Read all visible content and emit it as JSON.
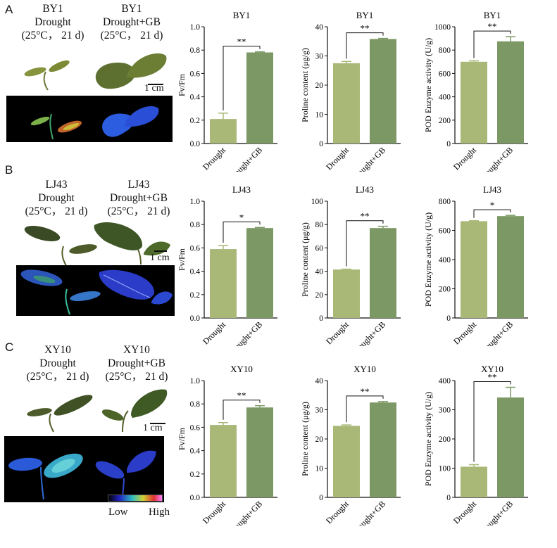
{
  "panels": [
    {
      "letter": "A",
      "label_left": [
        "BY1",
        "Drought",
        "(25°C， 21 d)"
      ],
      "label_right": [
        "BY1",
        "Drought+GB",
        "(25°C， 21 d)"
      ],
      "scale_bar": "1 cm"
    },
    {
      "letter": "B",
      "label_left": [
        "LJ43",
        "Drought",
        "(25°C， 21 d)"
      ],
      "label_right": [
        "LJ43",
        "Drought+GB",
        "(25°C， 21 d)"
      ],
      "scale_bar": "1 cm"
    },
    {
      "letter": "C",
      "label_left": [
        "XY10",
        "Drought",
        "(25°C， 21 d)"
      ],
      "label_right": [
        "XY10",
        "Drought+GB",
        "(25°C， 21 d)"
      ],
      "scale_bar": "1 cm",
      "colorbar": {
        "low": "Low",
        "high": "High"
      }
    }
  ],
  "colors": {
    "drought_bar": "#a9b877",
    "gb_bar": "#7c9965"
  },
  "chart_data": [
    {
      "type": "bar",
      "title": "BY1",
      "ylabel": "Fv/Fm",
      "categories": [
        "Drought",
        "Drought+GB"
      ],
      "values": [
        0.21,
        0.78
      ],
      "errors": [
        0.05,
        0.005
      ],
      "ylim": [
        0,
        1.0
      ],
      "yticks": [
        "0.0",
        "0.2",
        "0.4",
        "0.6",
        "0.8",
        "1.0"
      ],
      "significance": "**"
    },
    {
      "type": "bar",
      "title": "BY1",
      "ylabel": "Proline content (μg/g)",
      "categories": [
        "Drought",
        "Drought+GB"
      ],
      "values": [
        27.5,
        35.8
      ],
      "errors": [
        0.6,
        0.2
      ],
      "ylim": [
        0,
        40
      ],
      "yticks": [
        "0",
        "10",
        "20",
        "30",
        "40"
      ],
      "significance": "**"
    },
    {
      "type": "bar",
      "title": "BY1",
      "ylabel": "POD Enzyme activity (U/g)",
      "categories": [
        "Drought",
        "Drought+GB"
      ],
      "values": [
        700,
        875
      ],
      "errors": [
        8,
        40
      ],
      "ylim": [
        0,
        1000
      ],
      "yticks": [
        "0",
        "200",
        "400",
        "600",
        "800",
        "1000"
      ],
      "significance": "**"
    },
    {
      "type": "bar",
      "title": "LJ43",
      "ylabel": "Fv/Fm",
      "categories": [
        "Drought",
        "Drought+GB"
      ],
      "values": [
        0.59,
        0.77
      ],
      "errors": [
        0.03,
        0.005
      ],
      "ylim": [
        0,
        1.0
      ],
      "yticks": [
        "0.0",
        "0.2",
        "0.4",
        "0.6",
        "0.8",
        "1.0"
      ],
      "significance": "*"
    },
    {
      "type": "bar",
      "title": "LJ43",
      "ylabel": "Proline content (μg/g)",
      "categories": [
        "Drought",
        "Drought+GB"
      ],
      "values": [
        41.5,
        77
      ],
      "errors": [
        0.3,
        1.5
      ],
      "ylim": [
        0,
        100
      ],
      "yticks": [
        "0",
        "20",
        "40",
        "60",
        "80",
        "100"
      ],
      "significance": "**"
    },
    {
      "type": "bar",
      "title": "LJ43",
      "ylabel": "POD Enzyme activity (U/g)",
      "categories": [
        "Drought",
        "Drought+GB"
      ],
      "values": [
        663,
        698
      ],
      "errors": [
        3,
        5
      ],
      "ylim": [
        0,
        800
      ],
      "yticks": [
        "0",
        "200",
        "400",
        "600",
        "800"
      ],
      "significance": "*"
    },
    {
      "type": "bar",
      "title": "XY10",
      "ylabel": "Fv/Fm",
      "categories": [
        "Drought",
        "Drought+GB"
      ],
      "values": [
        0.62,
        0.77
      ],
      "errors": [
        0.02,
        0.015
      ],
      "ylim": [
        0,
        1.0
      ],
      "yticks": [
        "0.0",
        "0.2",
        "0.4",
        "0.6",
        "0.8",
        "1.0"
      ],
      "significance": "**"
    },
    {
      "type": "bar",
      "title": "XY10",
      "ylabel": "Proline content (μg/g)",
      "categories": [
        "Drought",
        "Drought+GB"
      ],
      "values": [
        24.5,
        32.5
      ],
      "errors": [
        0.3,
        0.3
      ],
      "ylim": [
        0,
        40
      ],
      "yticks": [
        "0",
        "10",
        "20",
        "30",
        "40"
      ],
      "significance": "**"
    },
    {
      "type": "bar",
      "title": "XY10",
      "ylabel": "POD Enzyme activity (U/g)",
      "categories": [
        "Drought",
        "Drought+GB"
      ],
      "values": [
        105,
        342
      ],
      "errors": [
        7,
        35
      ],
      "ylim": [
        0,
        400
      ],
      "yticks": [
        "0",
        "100",
        "200",
        "300",
        "400"
      ],
      "significance": "**"
    }
  ]
}
